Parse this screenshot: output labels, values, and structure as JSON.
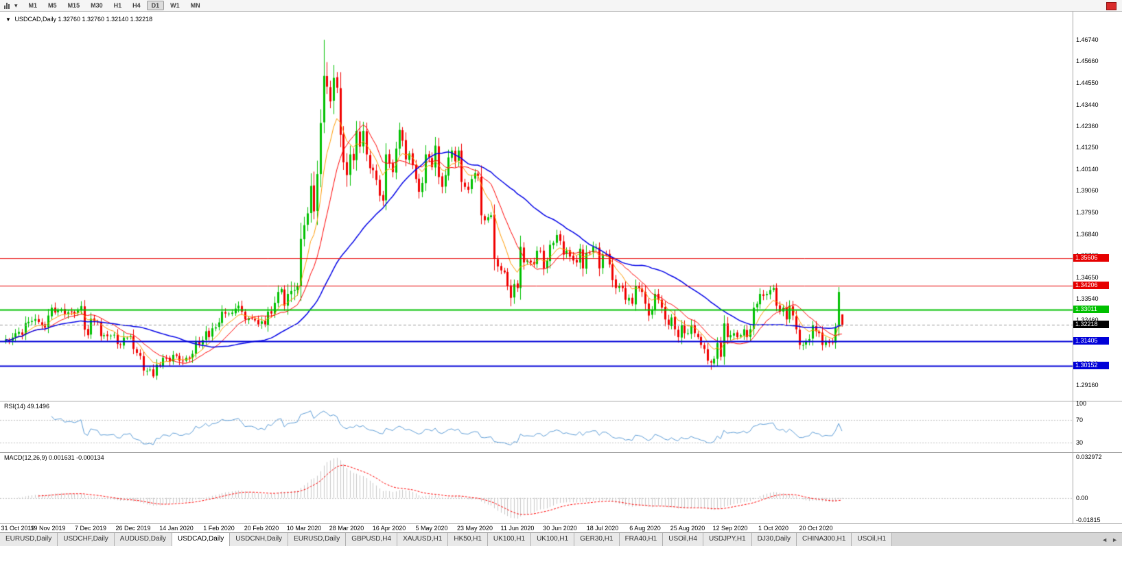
{
  "toolbar": {
    "timeframes": [
      "M1",
      "M5",
      "M15",
      "M30",
      "H1",
      "H4",
      "D1",
      "W1",
      "MN"
    ],
    "active_timeframe": "D1"
  },
  "chart_header": {
    "symbol_period": "USDCAD,Daily",
    "open": "1.32760",
    "high": "1.32760",
    "low": "1.32140",
    "close": "1.32218"
  },
  "price_axis": {
    "ticks": [
      "1.46740",
      "1.45660",
      "1.44550",
      "1.43440",
      "1.42360",
      "1.41250",
      "1.40140",
      "1.39060",
      "1.37950",
      "1.36840",
      "1.35760",
      "1.34650",
      "1.33540",
      "1.32460",
      "1.31350",
      "1.30240",
      "1.29160"
    ]
  },
  "date_axis": {
    "labels": [
      "31 Oct 2019",
      "19 Nov 2019",
      "7 Dec 2019",
      "26 Dec 2019",
      "14 Jan 2020",
      "1 Feb 2020",
      "20 Feb 2020",
      "10 Mar 2020",
      "28 Mar 2020",
      "16 Apr 2020",
      "5 May 2020",
      "23 May 2020",
      "11 Jun 2020",
      "30 Jun 2020",
      "18 Jul 2020",
      "6 Aug 2020",
      "25 Aug 2020",
      "12 Sep 2020",
      "1 Oct 2020",
      "20 Oct 2020"
    ],
    "day_indices": [
      0,
      13,
      26,
      39,
      52,
      65,
      78,
      91,
      104,
      117,
      130,
      143,
      156,
      169,
      182,
      195,
      208,
      221,
      234,
      247
    ]
  },
  "hlines": [
    {
      "label": "1.35606",
      "value": 1.35606,
      "color": "#e60000",
      "width": 1
    },
    {
      "label": "1.34206",
      "value": 1.34206,
      "color": "#e60000",
      "width": 1
    },
    {
      "label": "1.33011",
      "value": 1.33011,
      "color": "#00c000",
      "width": 2
    },
    {
      "label": "1.31405",
      "value": 1.31405,
      "color": "#0000d8",
      "width": 2
    },
    {
      "label": "1.30152",
      "value": 1.30152,
      "color": "#0000d8",
      "width": 2
    }
  ],
  "current_price": {
    "label": "1.32218",
    "value": 1.32218,
    "color": "#000000"
  },
  "rsi_panel": {
    "label": "RSI(14)",
    "value": "49.1496",
    "ticks": [
      "100",
      "70",
      "30"
    ],
    "levels": [
      70,
      30
    ],
    "line_color": "#5b9bd5",
    "range": [
      12,
      104
    ]
  },
  "macd_panel": {
    "label": "MACD(12,26,9)",
    "main_value": "0.001631",
    "signal_value": "-0.000134",
    "ticks": [
      {
        "label": "0.032972",
        "value": 0.032972
      },
      {
        "label": "0.00",
        "value": 0
      },
      {
        "label": "-0.01815",
        "value": -0.01815
      }
    ],
    "hist_color": "#c6c6c6",
    "signal_color": "#ff0000",
    "range": [
      -0.0196,
      0.0345
    ]
  },
  "tabs": {
    "items": [
      "EURUSD,Daily",
      "USDCHF,Daily",
      "AUDUSD,Daily",
      "USDCAD,Daily",
      "USDCNH,Daily",
      "EURUSD,Daily",
      "GBPUSD,H4",
      "XAUUSD,H1",
      "HK50,H1",
      "UK100,H1",
      "UK100,H1",
      "GER30,H1",
      "FRA40,H1",
      "USOil,H4",
      "USDJPY,H1",
      "DJ30,Daily",
      "CHINA300,H1",
      "USOil,H1"
    ],
    "active_index": 3,
    "left_arrow": "◄",
    "right_arrow": "►"
  },
  "chart_data": {
    "type": "candlestick",
    "title": "USDCAD,Daily",
    "symbol": "USDCAD",
    "period": "Daily",
    "ohlc_last": {
      "open": 1.3276,
      "high": 1.3276,
      "low": 1.3214,
      "close": 1.32218
    },
    "price_range": [
      1.2836,
      1.4817
    ],
    "up_color": "#00c000",
    "down_color": "#f00000",
    "closes": [
      1.3148,
      1.314,
      1.3158,
      1.318,
      1.3187,
      1.3172,
      1.3232,
      1.3238,
      1.3242,
      1.3252,
      1.3237,
      1.3222,
      1.3208,
      1.327,
      1.331,
      1.3285,
      1.3297,
      1.3302,
      1.3278,
      1.3287,
      1.3287,
      1.328,
      1.3295,
      1.3318,
      1.3198,
      1.317,
      1.3254,
      1.3242,
      1.3235,
      1.3165,
      1.317,
      1.3165,
      1.3168,
      1.3172,
      1.3125,
      1.312,
      1.3158,
      1.3157,
      1.3165,
      1.31,
      1.308,
      1.3065,
      1.299,
      1.2988,
      1.2995,
      1.296,
      1.302,
      1.3015,
      1.3055,
      1.3052,
      1.3035,
      1.307,
      1.3065,
      1.304,
      1.304,
      1.3055,
      1.305,
      1.3075,
      1.314,
      1.312,
      1.3145,
      1.319,
      1.316,
      1.3205,
      1.321,
      1.3235,
      1.329,
      1.328,
      1.328,
      1.3285,
      1.3305,
      1.332,
      1.329,
      1.325,
      1.3255,
      1.3255,
      1.3245,
      1.3225,
      1.324,
      1.3225,
      1.329,
      1.328,
      1.3335,
      1.339,
      1.3405,
      1.332,
      1.338,
      1.3395,
      1.34,
      1.342,
      1.366,
      1.373,
      1.379,
      1.393,
      1.38,
      1.399,
      1.425,
      1.449,
      1.4435,
      1.436,
      1.448,
      1.443,
      1.419,
      1.405,
      1.3985,
      1.409,
      1.406,
      1.421,
      1.413,
      1.421,
      1.409,
      1.402,
      1.401,
      1.396,
      1.388,
      1.3855,
      1.409,
      1.4045,
      1.4,
      1.412,
      1.4215,
      1.416,
      1.4065,
      1.4095,
      1.4035,
      1.3965,
      1.39,
      1.3945,
      1.409,
      1.4075,
      1.4025,
      1.4135,
      1.3975,
      1.3925,
      1.3985,
      1.4075,
      1.411,
      1.4055,
      1.411,
      1.395,
      1.3925,
      1.391,
      1.3965,
      1.3995,
      1.398,
      1.378,
      1.3755,
      1.377,
      1.378,
      1.356,
      1.352,
      1.35,
      1.349,
      1.342,
      1.336,
      1.343,
      1.341,
      1.362,
      1.354,
      1.355,
      1.354,
      1.353,
      1.36,
      1.36,
      1.351,
      1.355,
      1.363,
      1.364,
      1.368,
      1.365,
      1.358,
      1.36,
      1.357,
      1.355,
      1.354,
      1.361,
      1.351,
      1.359,
      1.359,
      1.362,
      1.362,
      1.351,
      1.358,
      1.358,
      1.353,
      1.345,
      1.341,
      1.342,
      1.341,
      1.335,
      1.336,
      1.333,
      1.342,
      1.341,
      1.339,
      1.333,
      1.327,
      1.33,
      1.338,
      1.335,
      1.331,
      1.325,
      1.322,
      1.326,
      1.32,
      1.316,
      1.322,
      1.318,
      1.318,
      1.322,
      1.318,
      1.316,
      1.312,
      1.31,
      1.304,
      1.303,
      1.305,
      1.313,
      1.306,
      1.323,
      1.316,
      1.317,
      1.318,
      1.316,
      1.317,
      1.32,
      1.316,
      1.32,
      1.331,
      1.333,
      1.338,
      1.337,
      1.338,
      1.34,
      1.341,
      1.332,
      1.329,
      1.331,
      1.325,
      1.332,
      1.327,
      1.32,
      1.312,
      1.312,
      1.314,
      1.315,
      1.322,
      1.319,
      1.318,
      1.312,
      1.314,
      1.313,
      1.313,
      1.321,
      1.339,
      1.32218
    ],
    "high_overrides": {
      "96": 1.432,
      "97": 1.4674,
      "98": 1.456,
      "100": 1.4545,
      "254": 1.3415
    },
    "low_overrides": {
      "42": 1.2963,
      "45": 1.2951,
      "154": 1.3317,
      "215": 1.2994
    },
    "last_candle": [
      1.3276,
      1.3276,
      1.3214,
      1.32218
    ],
    "ma": [
      {
        "period": 8,
        "type": "ema",
        "color": "#ff9900",
        "width": 1
      },
      {
        "period": 14,
        "type": "sma",
        "color": "#ff0000",
        "width": 1
      },
      {
        "period": 40,
        "type": "sma",
        "color": "#0000e6",
        "width": 1.5
      }
    ],
    "rsi": {
      "period": 14
    },
    "macd": {
      "fast": 12,
      "slow": 26,
      "signal": 9
    }
  }
}
